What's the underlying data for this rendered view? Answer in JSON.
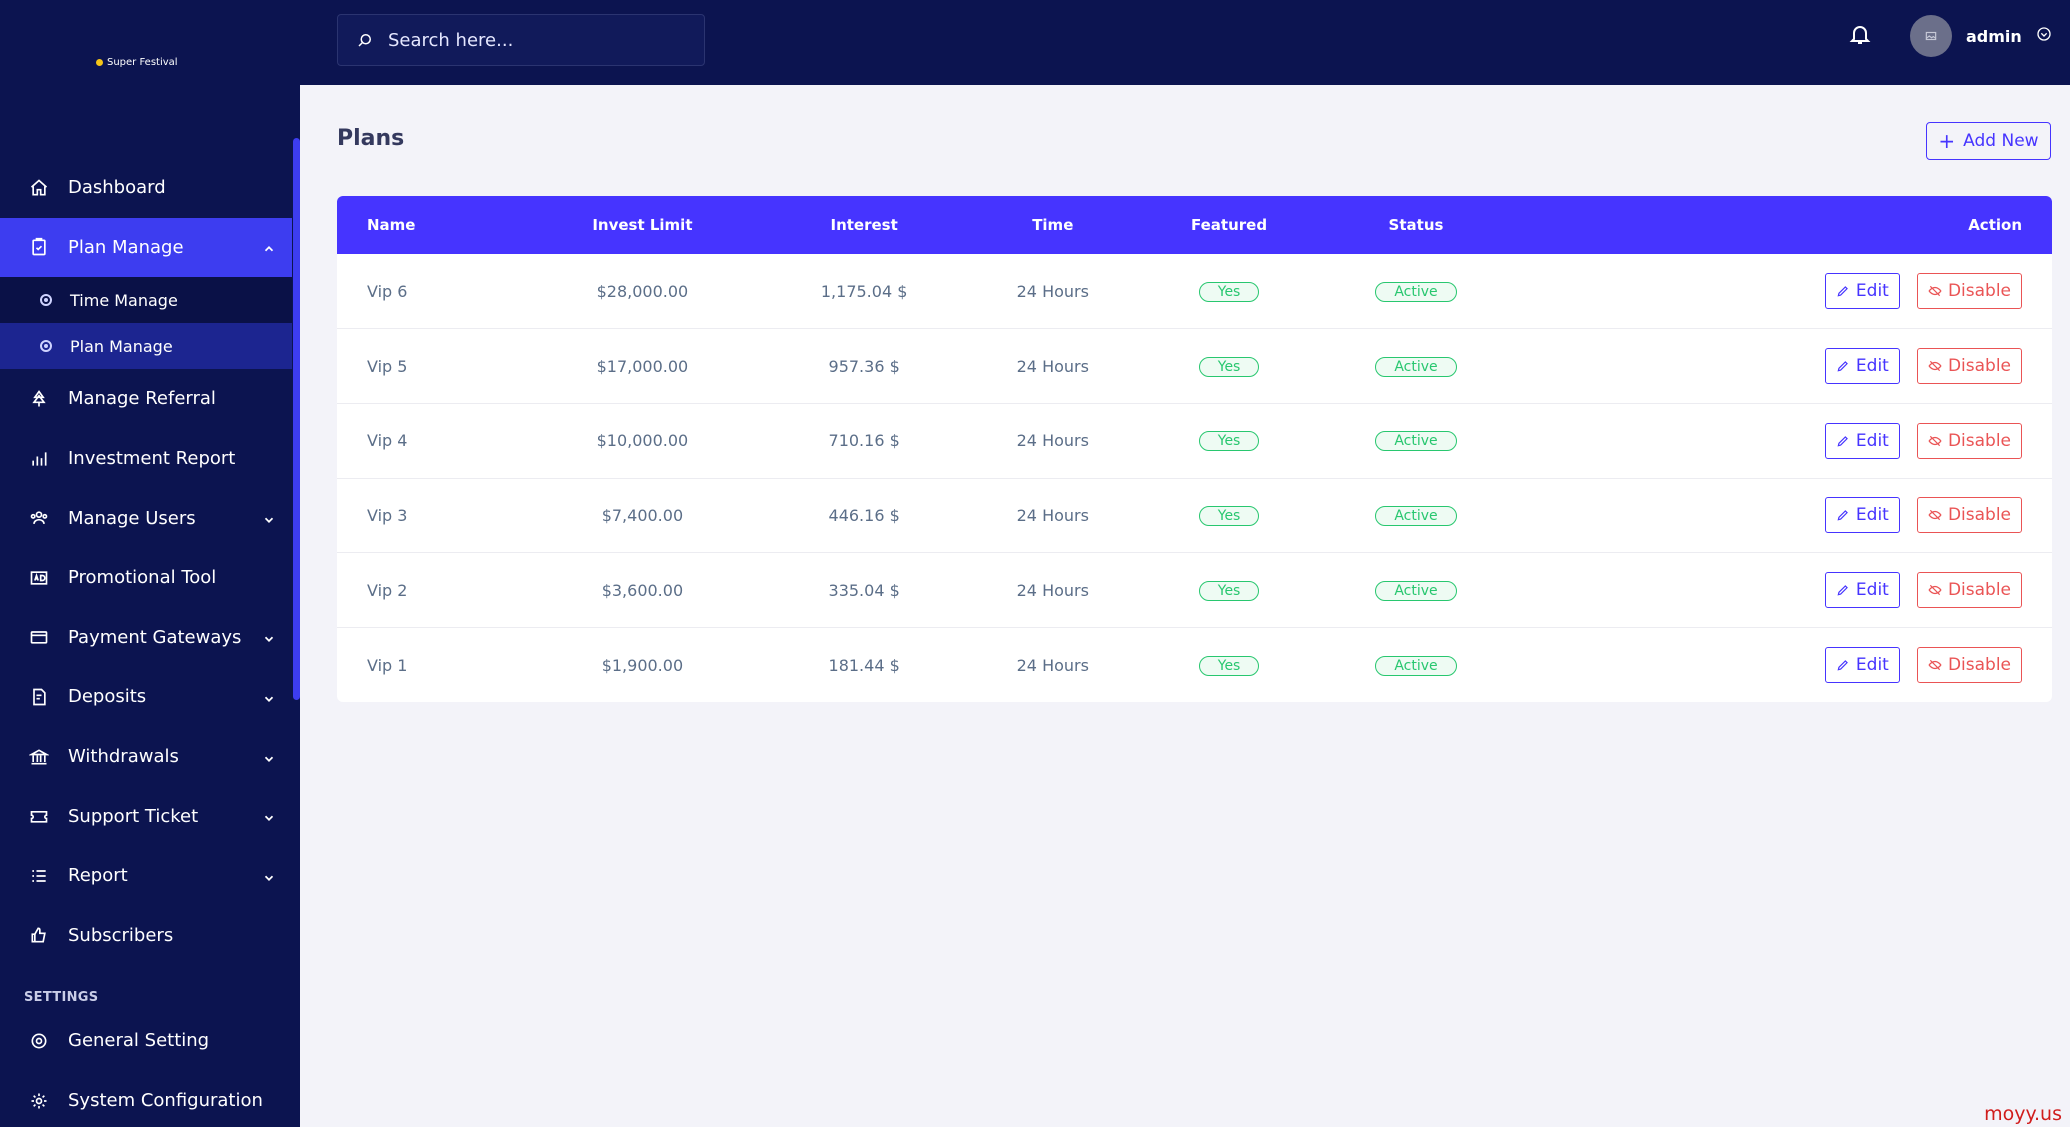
{
  "brand": {
    "name": "Super Festival"
  },
  "search": {
    "placeholder": "Search here..."
  },
  "user": {
    "name": "admin"
  },
  "sidebar": {
    "items": [
      {
        "label": "Dashboard",
        "icon": "home-icon"
      },
      {
        "label": "Plan Manage",
        "icon": "clipboard-icon",
        "expanded": true,
        "children": [
          {
            "label": "Time Manage"
          },
          {
            "label": "Plan Manage",
            "active": true
          }
        ]
      },
      {
        "label": "Manage Referral",
        "icon": "tree-icon"
      },
      {
        "label": "Investment Report",
        "icon": "bar-chart-icon"
      },
      {
        "label": "Manage Users",
        "icon": "users-icon",
        "has_dropdown": true
      },
      {
        "label": "Promotional Tool",
        "icon": "ad-icon"
      },
      {
        "label": "Payment Gateways",
        "icon": "credit-card-icon",
        "has_dropdown": true
      },
      {
        "label": "Deposits",
        "icon": "file-dollar-icon",
        "has_dropdown": true
      },
      {
        "label": "Withdrawals",
        "icon": "bank-icon",
        "has_dropdown": true
      },
      {
        "label": "Support Ticket",
        "icon": "ticket-icon",
        "has_dropdown": true
      },
      {
        "label": "Report",
        "icon": "list-icon",
        "has_dropdown": true
      },
      {
        "label": "Subscribers",
        "icon": "thumbs-up-icon"
      }
    ],
    "settings_label": "SETTINGS",
    "settings_items": [
      {
        "label": "General Setting",
        "icon": "life-ring-icon"
      },
      {
        "label": "System Configuration",
        "icon": "gear-icon"
      }
    ]
  },
  "main": {
    "title": "Plans",
    "add_button": "Add New",
    "table": {
      "headers": [
        "Name",
        "Invest Limit",
        "Interest",
        "Time",
        "Featured",
        "Status",
        "Action"
      ],
      "rows": [
        {
          "name": "Vip 6",
          "invest_limit": "$28,000.00",
          "interest": "1,175.04 $",
          "time": "24 Hours",
          "featured": "Yes",
          "status": "Active"
        },
        {
          "name": "Vip 5",
          "invest_limit": "$17,000.00",
          "interest": "957.36 $",
          "time": "24 Hours",
          "featured": "Yes",
          "status": "Active"
        },
        {
          "name": "Vip 4",
          "invest_limit": "$10,000.00",
          "interest": "710.16 $",
          "time": "24 Hours",
          "featured": "Yes",
          "status": "Active"
        },
        {
          "name": "Vip 3",
          "invest_limit": "$7,400.00",
          "interest": "446.16 $",
          "time": "24 Hours",
          "featured": "Yes",
          "status": "Active"
        },
        {
          "name": "Vip 2",
          "invest_limit": "$3,600.00",
          "interest": "335.04 $",
          "time": "24 Hours",
          "featured": "Yes",
          "status": "Active"
        },
        {
          "name": "Vip 1",
          "invest_limit": "$1,900.00",
          "interest": "181.44 $",
          "time": "24 Hours",
          "featured": "Yes",
          "status": "Active"
        }
      ],
      "edit_label": "Edit",
      "disable_label": "Disable"
    }
  },
  "colors": {
    "sidebar_bg": "#0c1450",
    "accent": "#4634ff",
    "success": "#28c76f",
    "danger": "#ea5455"
  },
  "watermark": "moyy.us"
}
